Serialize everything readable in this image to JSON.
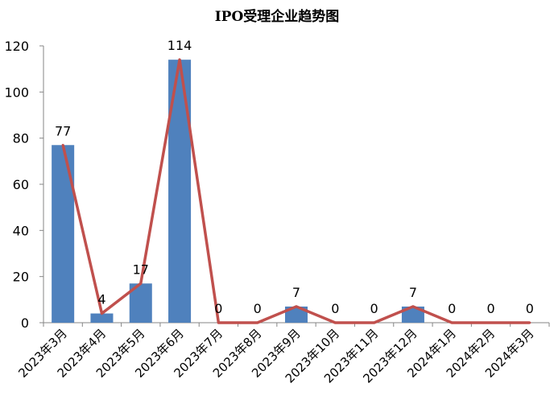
{
  "chart_data": {
    "type": "bar",
    "title": "IPO受理企业趋势图",
    "categories": [
      "2023年3月",
      "2023年4月",
      "2023年5月",
      "2023年6月",
      "2023年7月",
      "2023年8月",
      "2023年9月",
      "2023年10月",
      "2023年11月",
      "2023年12月",
      "2024年1月",
      "2024年2月",
      "2024年3月"
    ],
    "values": [
      77,
      4,
      17,
      114,
      0,
      0,
      7,
      0,
      0,
      7,
      0,
      0,
      0
    ],
    "line_overlay": true,
    "data_labels": true,
    "ylim": [
      0,
      120
    ],
    "yticks": [
      0,
      20,
      40,
      60,
      80,
      100,
      120
    ],
    "grid": false,
    "legend": "none",
    "colors": {
      "bar": "#4F81BD",
      "line": "#C0504D",
      "axis": "#868686"
    }
  }
}
